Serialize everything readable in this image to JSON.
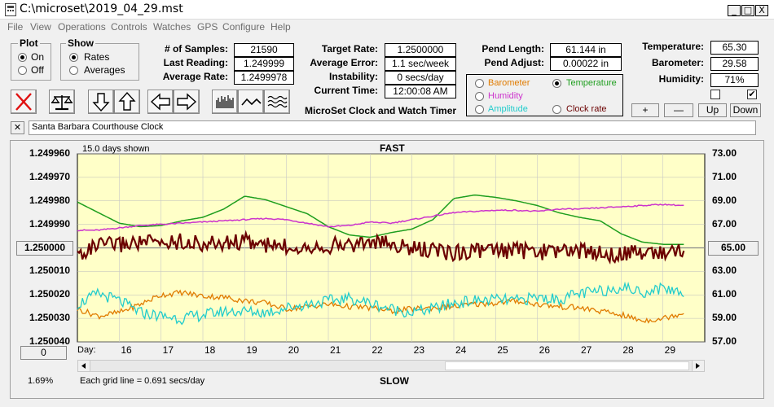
{
  "window": {
    "title": "C:\\microset\\2019_04_29.mst",
    "min": "_",
    "max": "□",
    "close": "X"
  },
  "menu": [
    "File",
    "View",
    "Operations",
    "Controls",
    "Watches",
    "GPS",
    "Configure",
    "Help"
  ],
  "plot_group": {
    "title": "Plot",
    "on": "On",
    "off": "Off",
    "selected": "On"
  },
  "show_group": {
    "title": "Show",
    "rates": "Rates",
    "averages": "Averages",
    "selected": "Rates"
  },
  "stats": {
    "samples_label": "# of Samples:",
    "samples": "21590",
    "last_label": "Last Reading:",
    "last": "1.249999",
    "avg_label": "Average Rate:",
    "avg": "1.2499978"
  },
  "rates": {
    "target_label": "Target Rate:",
    "target": "1.2500000",
    "error_label": "Average Error:",
    "error": "1.1 sec/week",
    "instab_label": "Instability:",
    "instab": "0 secs/day",
    "time_label": "Current Time:",
    "time": "12:00:08 AM"
  },
  "pend": {
    "length_label": "Pend Length:",
    "length": "61.144 in",
    "adjust_label": "Pend Adjust:",
    "adjust": "0.00022 in"
  },
  "environment": {
    "temp_label": "Temperature:",
    "temp": "65.30",
    "baro_label": "Barometer:",
    "baro": "29.58",
    "hum_label": "Humidity:",
    "hum": "71%"
  },
  "legend": {
    "barometer": "Barometer",
    "temperature": "Temperature",
    "humidity": "Humidity",
    "amplitude": "Amplitude",
    "clock_rate": "Clock rate",
    "selected": "Temperature",
    "colors": {
      "barometer": "#e07b00",
      "temperature": "#1e9e1e",
      "humidity": "#cc33cc",
      "amplitude": "#22cccc",
      "clock_rate": "#6b0000"
    }
  },
  "buttons": {
    "plus": "+",
    "minus": "—",
    "up": "Up",
    "down": "Down"
  },
  "checkboxes": {
    "first": false,
    "second": true
  },
  "app_title": "MicroSet Clock and Watch Timer",
  "clock_name": "Santa Barbara Courthouse Clock",
  "clear_button": "✕",
  "chart": {
    "days_shown": "15.0 days shown",
    "top_label": "FAST",
    "bottom_label": "SLOW",
    "grid_note": "Each grid line = 0.691 secs/day",
    "percent": "1.69%",
    "day_label": "Day:",
    "left_center_button": "1.250000",
    "right_center_button": "65.00",
    "left_bottom_button": "0"
  },
  "chart_data": {
    "type": "line",
    "x_label": "Day:",
    "x_ticks": [
      "16",
      "17",
      "18",
      "19",
      "20",
      "21",
      "22",
      "23",
      "24",
      "25",
      "26",
      "27",
      "28",
      "29"
    ],
    "y_left_ticks": [
      "1.249960",
      "1.249970",
      "1.249980",
      "1.249990",
      "1.250000",
      "1.250010",
      "1.250020",
      "1.250030",
      "1.250040"
    ],
    "y_right_ticks": [
      "73.00",
      "71.00",
      "69.00",
      "67.00",
      "65.00",
      "63.00",
      "61.00",
      "59.00",
      "57.00"
    ],
    "y_left_range": [
      1.24996,
      1.25004
    ],
    "y_right_range": [
      57,
      73
    ],
    "x_range": [
      15.0,
      30.0
    ],
    "series": [
      {
        "name": "Temperature",
        "color": "#1e9e1e",
        "x": [
          15.0,
          15.5,
          16.0,
          16.5,
          17.0,
          17.5,
          18.0,
          18.5,
          19.0,
          19.5,
          20.0,
          20.5,
          21.0,
          21.5,
          22.0,
          22.5,
          23.0,
          23.5,
          24.0,
          24.5,
          25.0,
          25.5,
          26.0,
          26.5,
          27.0,
          27.5,
          28.0,
          28.5,
          29.0,
          29.5
        ],
        "y": [
          68.9,
          68.0,
          67.1,
          66.8,
          66.9,
          67.3,
          67.6,
          68.3,
          69.4,
          69.1,
          68.5,
          67.9,
          66.8,
          66.1,
          65.9,
          66.3,
          66.6,
          67.4,
          69.2,
          69.5,
          69.3,
          69.0,
          68.6,
          68.0,
          67.6,
          67.3,
          66.2,
          65.5,
          65.3,
          65.3
        ]
      },
      {
        "name": "Humidity",
        "color": "#cc33cc",
        "x": [
          15.0,
          15.5,
          16.0,
          16.5,
          17.0,
          17.5,
          18.0,
          18.5,
          19.0,
          19.5,
          20.0,
          20.5,
          21.0,
          21.5,
          22.0,
          22.5,
          23.0,
          23.5,
          24.0,
          24.5,
          25.0,
          25.5,
          26.0,
          26.5,
          27.0,
          27.5,
          28.0,
          28.5,
          29.0,
          29.5
        ],
        "y": [
          66.5,
          66.5,
          66.7,
          66.9,
          67.0,
          67.1,
          67.2,
          67.3,
          67.4,
          67.5,
          67.4,
          67.1,
          66.8,
          66.9,
          67.2,
          67.1,
          67.4,
          67.7,
          68.0,
          68.1,
          68.2,
          68.2,
          68.1,
          68.3,
          68.3,
          68.4,
          68.5,
          68.6,
          68.7,
          68.6
        ]
      },
      {
        "name": "Clock rate",
        "color": "#6b0000",
        "x": [
          15.0,
          15.5,
          16.0,
          16.5,
          17.0,
          17.5,
          18.0,
          18.5,
          19.0,
          19.5,
          20.0,
          20.5,
          21.0,
          21.5,
          22.0,
          22.5,
          23.0,
          23.5,
          24.0,
          24.5,
          25.0,
          25.5,
          26.0,
          26.5,
          27.0,
          27.5,
          28.0,
          28.5,
          29.0,
          29.5
        ],
        "y": [
          1.250003,
          1.249999,
          1.2499985,
          1.2499975,
          1.249998,
          1.249997,
          1.2499985,
          1.249998,
          1.249997,
          1.249999,
          1.2499995,
          1.249999,
          1.249999,
          1.2499985,
          1.2499975,
          1.2499985,
          1.2500005,
          1.250001,
          1.250002,
          1.250001,
          1.2500015,
          1.250001,
          1.250002,
          1.250001,
          1.2500015,
          1.250002,
          1.250003,
          1.2500015,
          1.250002,
          1.2500005
        ]
      },
      {
        "name": "Barometer",
        "color": "#e07b00",
        "x": [
          15.0,
          15.5,
          16.0,
          16.5,
          17.0,
          17.5,
          18.0,
          18.5,
          19.0,
          19.5,
          20.0,
          20.5,
          21.0,
          21.5,
          22.0,
          22.5,
          23.0,
          23.5,
          24.0,
          24.5,
          25.0,
          25.5,
          26.0,
          26.5,
          27.0,
          27.5,
          28.0,
          28.5,
          29.0,
          29.5
        ],
        "y": [
          59.8,
          59.2,
          59.5,
          60.2,
          61.0,
          61.2,
          60.9,
          60.8,
          60.5,
          60.3,
          59.8,
          60.0,
          60.2,
          60.0,
          59.9,
          59.6,
          59.8,
          59.9,
          60.0,
          60.2,
          60.3,
          60.5,
          60.2,
          60.0,
          59.9,
          59.6,
          59.3,
          58.8,
          59.0,
          59.5
        ]
      },
      {
        "name": "Amplitude",
        "color": "#22cccc",
        "x": [
          15.0,
          15.5,
          16.0,
          16.5,
          17.0,
          17.5,
          18.0,
          18.5,
          19.0,
          19.5,
          20.0,
          20.5,
          21.0,
          21.5,
          22.0,
          22.5,
          23.0,
          23.5,
          24.0,
          24.5,
          25.0,
          25.5,
          26.0,
          26.5,
          27.0,
          27.5,
          28.0,
          28.5,
          29.0,
          29.5
        ],
        "y": [
          60.2,
          61.1,
          60.5,
          59.5,
          59.2,
          59.0,
          59.3,
          59.6,
          59.6,
          59.5,
          59.9,
          60.2,
          60.5,
          60.7,
          60.3,
          59.8,
          59.5,
          59.8,
          60.3,
          60.5,
          60.6,
          60.5,
          60.8,
          60.6,
          61.1,
          61.3,
          61.7,
          61.2,
          61.6,
          61.2
        ]
      }
    ]
  }
}
